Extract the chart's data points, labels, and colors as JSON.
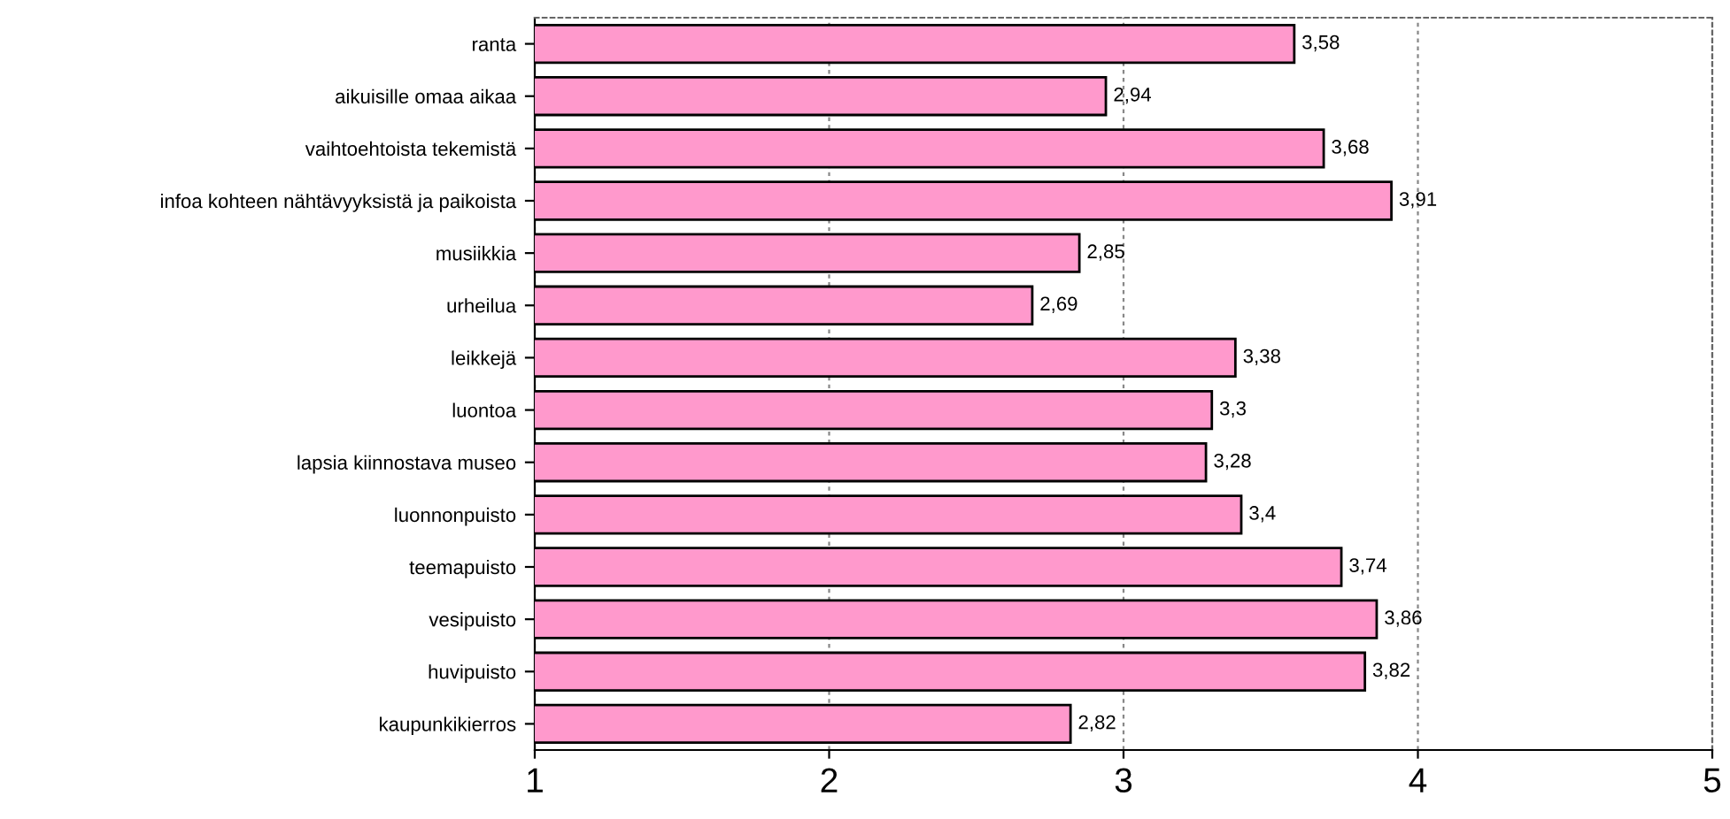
{
  "chart_data": {
    "type": "bar",
    "orientation": "horizontal",
    "categories": [
      "ranta",
      "aikuisille omaa aikaa",
      "vaihtoehtoista tekemistä",
      "infoa kohteen nähtävyyksistä ja paikoista",
      "musiikkia",
      "urheilua",
      "leikkejä",
      "luontoa",
      "lapsia kiinnostava museo",
      "luonnonpuisto",
      "teemapuisto",
      "vesipuisto",
      "huvipuisto",
      "kaupunkikierros"
    ],
    "values": [
      3.58,
      2.94,
      3.68,
      3.91,
      2.85,
      2.69,
      3.38,
      3.3,
      3.28,
      3.4,
      3.74,
      3.86,
      3.82,
      2.82
    ],
    "value_labels": [
      "3,58",
      "2,94",
      "3,68",
      "3,91",
      "2,85",
      "2,69",
      "3,38",
      "3,3",
      "3,28",
      "3,4",
      "3,74",
      "3,86",
      "3,82",
      "2,82"
    ],
    "color": "#ff99cc",
    "xlim": [
      1,
      5
    ],
    "xticks": [
      1,
      2,
      3,
      4,
      5
    ],
    "grid": "x"
  }
}
